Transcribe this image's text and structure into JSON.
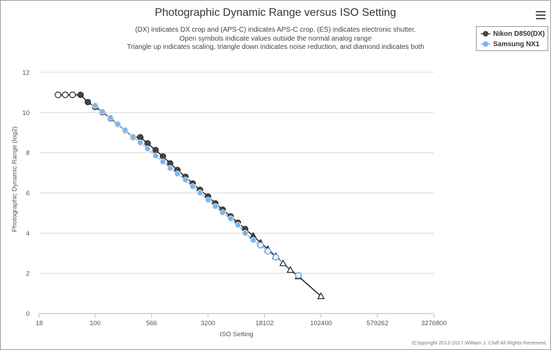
{
  "title": "Photographic Dynamic Range versus ISO Setting",
  "subtitle_lines": [
    "(DX) indicates DX crop and (APS-C) indicates APS-C crop. (ES) indicates electronic shutter.",
    "Open symbols indicate values outside the normal analog range",
    "Triangle up indicates scaling, triangle down indicates noise reduction, and diamond indicates both"
  ],
  "menu_icon": "hamburger-menu-icon",
  "credits": "(C)opyright 2012-2017 William J. Claff All Rights Reserved.",
  "legend": [
    {
      "label": "Nikon D850(DX)",
      "color": "#434348"
    },
    {
      "label": "Samsung NX1",
      "color": "#7cb5ec"
    }
  ],
  "chart_data": {
    "type": "scatter",
    "title": "Photographic Dynamic Range versus ISO Setting",
    "xlabel": "ISO Setting",
    "ylabel": "Photographic Dynamic Range (log2)",
    "x_scale": "log",
    "x_ticks": [
      18,
      100,
      566,
      3200,
      18102,
      102400,
      579262,
      3276800
    ],
    "x_tick_labels": [
      "18",
      "100",
      "566",
      "3200",
      "18102",
      "102400",
      "579262",
      "3276800"
    ],
    "ylim": [
      0,
      12
    ],
    "y_ticks": [
      0,
      2,
      4,
      6,
      8,
      10,
      12
    ],
    "grid": true,
    "legend_position": "top-right",
    "series": [
      {
        "name": "Nikon D850(DX)",
        "color": "#434348",
        "points": [
          {
            "x": 32,
            "y": 10.88,
            "s": "open"
          },
          {
            "x": 40,
            "y": 10.88,
            "s": "open"
          },
          {
            "x": 50,
            "y": 10.88,
            "s": "open"
          },
          {
            "x": 64,
            "y": 10.88,
            "s": "filled"
          },
          {
            "x": 80,
            "y": 10.52,
            "s": "filled"
          },
          {
            "x": 100,
            "y": 10.28,
            "s": "filled"
          },
          {
            "x": 125,
            "y": 10.02,
            "s": "filled"
          },
          {
            "x": 160,
            "y": 9.72,
            "s": "filled"
          },
          {
            "x": 200,
            "y": 9.42,
            "s": "filled"
          },
          {
            "x": 250,
            "y": 9.12,
            "s": "filled"
          },
          {
            "x": 320,
            "y": 8.78,
            "s": "filled"
          },
          {
            "x": 400,
            "y": 8.77,
            "s": "filled"
          },
          {
            "x": 500,
            "y": 8.47,
            "s": "filled"
          },
          {
            "x": 640,
            "y": 8.13,
            "s": "filled"
          },
          {
            "x": 800,
            "y": 7.82,
            "s": "filled"
          },
          {
            "x": 1000,
            "y": 7.47,
            "s": "filled"
          },
          {
            "x": 1250,
            "y": 7.14,
            "s": "filled"
          },
          {
            "x": 1600,
            "y": 6.8,
            "s": "filled"
          },
          {
            "x": 2000,
            "y": 6.47,
            "s": "filled"
          },
          {
            "x": 2500,
            "y": 6.15,
            "s": "filled"
          },
          {
            "x": 3200,
            "y": 5.82,
            "s": "filled"
          },
          {
            "x": 4000,
            "y": 5.48,
            "s": "filled"
          },
          {
            "x": 5000,
            "y": 5.17,
            "s": "filled"
          },
          {
            "x": 6400,
            "y": 4.83,
            "s": "filled"
          },
          {
            "x": 8000,
            "y": 4.52,
            "s": "filled"
          },
          {
            "x": 10000,
            "y": 4.2,
            "s": "filled"
          },
          {
            "x": 12800,
            "y": 3.86,
            "s": "triangle-up"
          },
          {
            "x": 16000,
            "y": 3.52,
            "s": "triangle-up"
          },
          {
            "x": 20000,
            "y": 3.2,
            "s": "triangle-up"
          },
          {
            "x": 25600,
            "y": 2.85,
            "s": "triangle-up"
          },
          {
            "x": 32000,
            "y": 2.5,
            "s": "triangle-up-open"
          },
          {
            "x": 40000,
            "y": 2.17,
            "s": "triangle-up-open"
          },
          {
            "x": 51200,
            "y": 1.85,
            "s": "triangle-up-open"
          },
          {
            "x": 102400,
            "y": 0.86,
            "s": "triangle-up-open"
          }
        ]
      },
      {
        "name": "Samsung NX1",
        "color": "#7cb5ec",
        "points": [
          {
            "x": 100,
            "y": 10.35,
            "s": "filled"
          },
          {
            "x": 125,
            "y": 10.05,
            "s": "filled"
          },
          {
            "x": 160,
            "y": 9.75,
            "s": "filled"
          },
          {
            "x": 200,
            "y": 9.43,
            "s": "filled"
          },
          {
            "x": 250,
            "y": 9.13,
            "s": "filled"
          },
          {
            "x": 320,
            "y": 8.8,
            "s": "filled"
          },
          {
            "x": 400,
            "y": 8.5,
            "s": "filled"
          },
          {
            "x": 500,
            "y": 8.2,
            "s": "filled"
          },
          {
            "x": 640,
            "y": 7.85,
            "s": "filled"
          },
          {
            "x": 800,
            "y": 7.55,
            "s": "filled"
          },
          {
            "x": 1000,
            "y": 7.23,
            "s": "filled"
          },
          {
            "x": 1250,
            "y": 6.95,
            "s": "filled"
          },
          {
            "x": 1600,
            "y": 6.65,
            "s": "filled"
          },
          {
            "x": 2000,
            "y": 6.32,
            "s": "filled"
          },
          {
            "x": 2500,
            "y": 6.0,
            "s": "filled"
          },
          {
            "x": 3200,
            "y": 5.65,
            "s": "filled"
          },
          {
            "x": 4000,
            "y": 5.33,
            "s": "filled"
          },
          {
            "x": 5000,
            "y": 5.02,
            "s": "filled"
          },
          {
            "x": 6400,
            "y": 4.72,
            "s": "filled"
          },
          {
            "x": 8000,
            "y": 4.4,
            "s": "filled"
          },
          {
            "x": 10000,
            "y": 4.0,
            "s": "filled"
          },
          {
            "x": 12800,
            "y": 3.65,
            "s": "filled"
          },
          {
            "x": 16000,
            "y": 3.4,
            "s": "open"
          },
          {
            "x": 20000,
            "y": 3.1,
            "s": "open"
          },
          {
            "x": 25600,
            "y": 2.8,
            "s": "open"
          },
          {
            "x": 51200,
            "y": 1.9,
            "s": "open"
          }
        ]
      }
    ]
  }
}
